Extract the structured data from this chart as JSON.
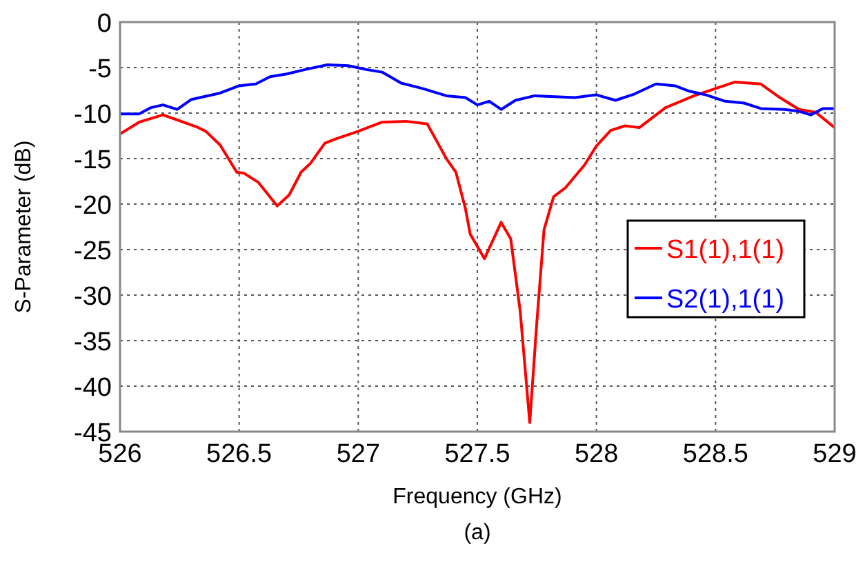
{
  "chart_data": {
    "type": "line",
    "xlabel": "Frequency (GHz)",
    "ylabel": "S-Parameter (dB)",
    "annotations": [
      "(a)"
    ],
    "xlim": [
      526,
      529
    ],
    "xticks": [
      526,
      526.5,
      527,
      527.5,
      528,
      528.5,
      529
    ],
    "ylim": [
      -45,
      0
    ],
    "yticks": [
      -45,
      -40,
      -35,
      -30,
      -25,
      -20,
      -15,
      -10,
      -5,
      0
    ],
    "grid": true,
    "legend": "right",
    "line_style": "solid",
    "series": [
      {
        "name": "S1(1),1(1)",
        "color": "#ff0000",
        "x": [
          526,
          526.08,
          526.18,
          526.32,
          526.36,
          526.42,
          526.49,
          526.52,
          526.58,
          526.66,
          526.71,
          526.76,
          526.8,
          526.86,
          526.91,
          527,
          527.1,
          527.2,
          527.29,
          527.37,
          527.41,
          527.45,
          527.47,
          527.53,
          527.6,
          527.64,
          527.68,
          527.72,
          527.75,
          527.78,
          527.82,
          527.87,
          527.95,
          528,
          528.06,
          528.12,
          528.18,
          528.29,
          528.41,
          528.5,
          528.58,
          528.69,
          528.77,
          528.85,
          528.92,
          529
        ],
        "values": [
          -12.3,
          -11,
          -10.2,
          -11.5,
          -12,
          -13.5,
          -16.5,
          -16.6,
          -17.6,
          -20.2,
          -19,
          -16.5,
          -15.5,
          -13.3,
          -12.8,
          -12,
          -11,
          -10.9,
          -11.2,
          -15,
          -16.5,
          -20.5,
          -23.3,
          -26,
          -22,
          -23.8,
          -31.8,
          -44,
          -32.9,
          -22.8,
          -19.2,
          -18.2,
          -15.7,
          -13.6,
          -11.9,
          -11.4,
          -11.6,
          -9.4,
          -8.1,
          -7.3,
          -6.6,
          -6.8,
          -8.3,
          -9.6,
          -9.9,
          -11.6
        ]
      },
      {
        "name": "S2(1),1(1)",
        "color": "#0000ff",
        "x": [
          526,
          526.08,
          526.13,
          526.18,
          526.24,
          526.3,
          526.42,
          526.5,
          526.57,
          526.63,
          526.7,
          526.78,
          526.87,
          526.96,
          527.03,
          527.1,
          527.18,
          527.27,
          527.37,
          527.45,
          527.5,
          527.55,
          527.6,
          527.66,
          527.74,
          527.91,
          528,
          528.08,
          528.16,
          528.25,
          528.33,
          528.39,
          528.46,
          528.54,
          528.62,
          528.69,
          528.79,
          528.85,
          528.9,
          528.95,
          529
        ],
        "values": [
          -10.1,
          -10.1,
          -9.4,
          -9.1,
          -9.6,
          -8.5,
          -7.8,
          -7,
          -6.8,
          -6,
          -5.7,
          -5.2,
          -4.7,
          -4.8,
          -5.2,
          -5.5,
          -6.7,
          -7.3,
          -8.1,
          -8.3,
          -9.1,
          -8.7,
          -9.6,
          -8.6,
          -8.1,
          -8.3,
          -8,
          -8.6,
          -7.9,
          -6.8,
          -7,
          -7.6,
          -8,
          -8.7,
          -8.9,
          -9.5,
          -9.6,
          -9.8,
          -10.2,
          -9.5,
          -9.5
        ]
      }
    ]
  }
}
